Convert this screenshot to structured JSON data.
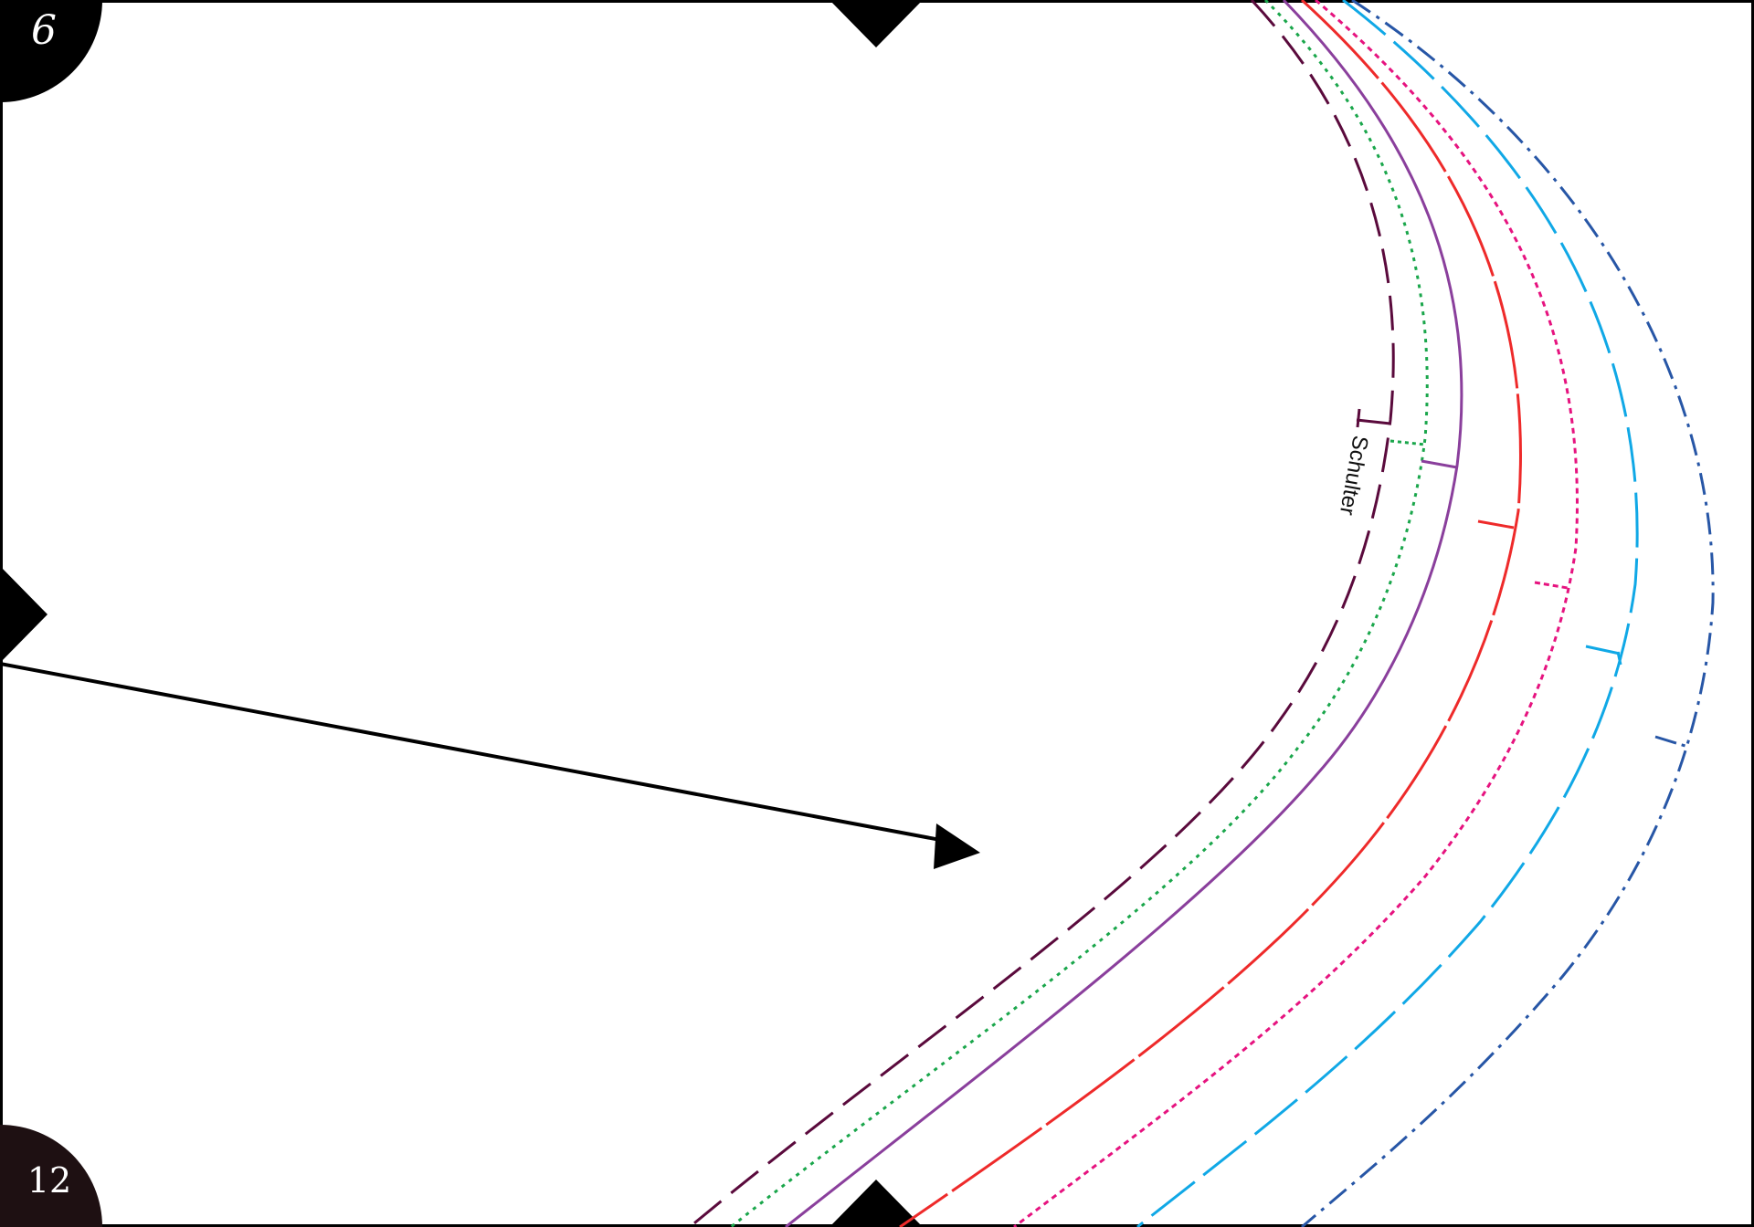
{
  "sheet": {
    "page_top_left": "6",
    "page_bottom_left": "12"
  },
  "pattern": {
    "label": "Schulter",
    "colors": {
      "black": "#000000",
      "dark_purple": "#5a0a3c",
      "green": "#1aa64b",
      "purple": "#8a3f9c",
      "red": "#ee2a2a",
      "magenta": "#e6137f",
      "light_blue": "#10a8e6",
      "dark_blue": "#2756a6",
      "corner_dark": "#1e1012"
    }
  }
}
